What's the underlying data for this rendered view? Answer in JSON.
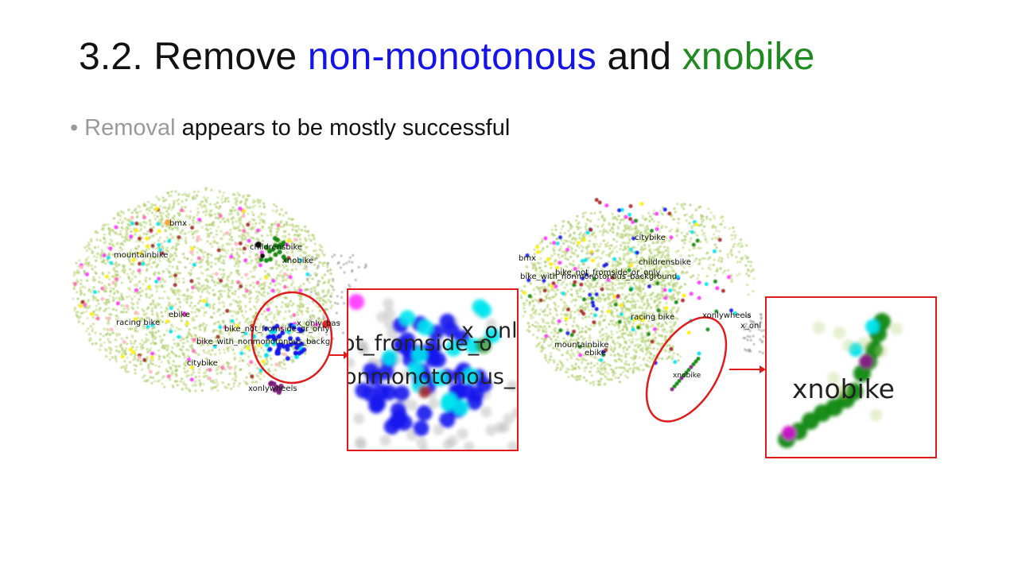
{
  "title": {
    "prefix": "3.2. Remove ",
    "highlight1": "non-monotonous",
    "middle": " and ",
    "highlight2": "xnobike"
  },
  "bullet": {
    "grey_word": "Removal",
    "rest": " appears to be mostly successful"
  },
  "left_plot": {
    "labels": [
      "bmx",
      "childrensbike",
      "xnobike",
      "mountainbike",
      "ebike",
      "racing bike",
      "bike_not_fromside_or_only",
      "x_only_bas",
      "bike_with_nonmonotonous_backg",
      "citybike",
      "xonlywheels"
    ],
    "zoom_labels": [
      "ot_fromside_o",
      "x_onl",
      "onmonotonous_"
    ]
  },
  "right_plot": {
    "labels": [
      "citybike",
      "bmx",
      "childrensbike",
      "bike_with_nonmonotonous_background",
      "bike_not_fromside_or_only",
      "racing bike",
      "xonlywheels",
      "x_onl",
      "mountainbike",
      "ebike",
      "xnobike"
    ],
    "zoom_label": "xnobike"
  },
  "colors": {
    "title_blue": "#1414e6",
    "title_green": "#1f8a1f",
    "callout_red": "#e01b1b",
    "point_green": "#b8d47a"
  }
}
